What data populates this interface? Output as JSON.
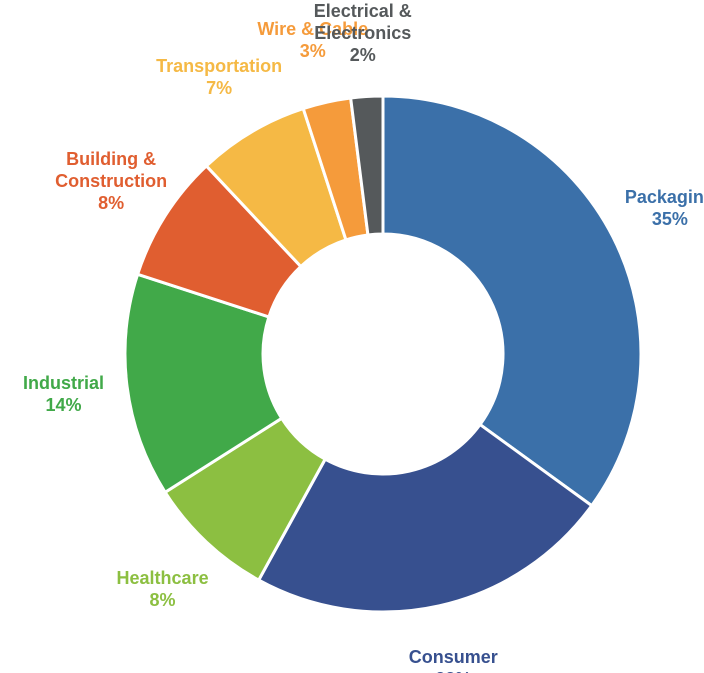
{
  "chart_data": {
    "type": "donut",
    "categories": [
      "Packaging",
      "Consumer",
      "Healthcare",
      "Industrial",
      "Building &\nConstruction",
      "Transportation",
      "Wire & Cable",
      "Electrical &\nElectronics"
    ],
    "values": [
      35,
      23,
      8,
      14,
      8,
      7,
      3,
      2
    ],
    "value_labels": [
      "35%",
      "23%",
      "8%",
      "14%",
      "8%",
      "7%",
      "3%",
      "2%"
    ],
    "colors": [
      "#3b70a9",
      "#37508f",
      "#8cbf41",
      "#41a949",
      "#e05e30",
      "#f5b945",
      "#f59b3b",
      "#55595b"
    ]
  }
}
